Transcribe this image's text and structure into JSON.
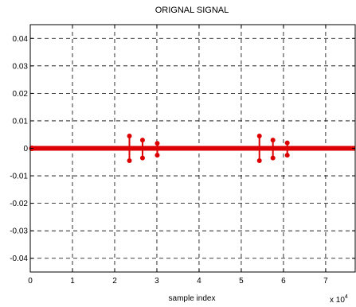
{
  "chart_data": {
    "type": "stem",
    "title": "ORIGNAL SIGNAL",
    "xlabel": "sample index",
    "ylabel": "",
    "x_multiplier_label": "x 10",
    "x_multiplier_exponent": "4",
    "xlim": [
      0,
      7.7
    ],
    "ylim": [
      -0.045,
      0.045
    ],
    "x_ticks": [
      0,
      1,
      2,
      3,
      4,
      5,
      6,
      7
    ],
    "x_tick_labels": [
      "0",
      "1",
      "2",
      "3",
      "4",
      "5",
      "6",
      "7"
    ],
    "y_ticks": [
      0.04,
      0.03,
      0.02,
      0.01,
      0,
      -0.01,
      -0.02,
      -0.03,
      -0.04
    ],
    "y_tick_labels": [
      "0.04",
      "0.03",
      "0.02",
      "0.01",
      "0",
      "-0.01",
      "-0.02",
      "-0.03",
      "-0.04"
    ],
    "grid": true,
    "color": "#dd0000",
    "baseline": {
      "value": 0,
      "x_range": [
        0,
        7.7
      ]
    },
    "stems": [
      {
        "x": 2.35,
        "y": 0.0045
      },
      {
        "x": 2.35,
        "y": -0.0045
      },
      {
        "x": 2.66,
        "y": 0.003
      },
      {
        "x": 2.66,
        "y": -0.0035
      },
      {
        "x": 3.01,
        "y": 0.0018
      },
      {
        "x": 3.01,
        "y": -0.0025
      },
      {
        "x": 5.43,
        "y": 0.0045
      },
      {
        "x": 5.43,
        "y": -0.0045
      },
      {
        "x": 5.75,
        "y": 0.003
      },
      {
        "x": 5.75,
        "y": -0.0035
      },
      {
        "x": 6.09,
        "y": 0.002
      },
      {
        "x": 6.09,
        "y": -0.0025
      }
    ]
  }
}
